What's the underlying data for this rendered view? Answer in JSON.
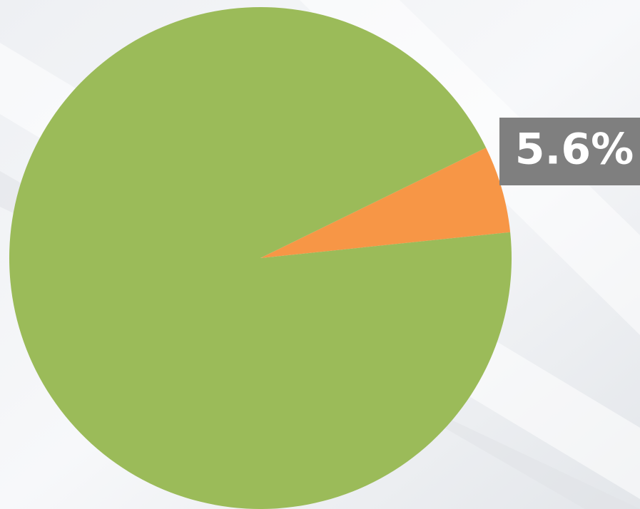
{
  "chart_data": {
    "type": "pie",
    "values": [
      5.6,
      94.4
    ],
    "value_labels": [
      "5.6%",
      null
    ],
    "colors": [
      "#f79646",
      "#9bbb59"
    ]
  }
}
